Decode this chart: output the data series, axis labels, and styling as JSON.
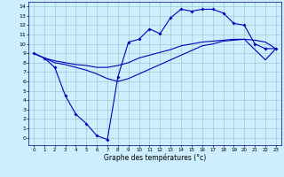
{
  "xlabel": "Graphe des températures (°c)",
  "xlim": [
    -0.5,
    23.5
  ],
  "ylim": [
    -0.8,
    14.5
  ],
  "xticks": [
    0,
    1,
    2,
    3,
    4,
    5,
    6,
    7,
    8,
    9,
    10,
    11,
    12,
    13,
    14,
    15,
    16,
    17,
    18,
    19,
    20,
    21,
    22,
    23
  ],
  "yticks": [
    0,
    1,
    2,
    3,
    4,
    5,
    6,
    7,
    8,
    9,
    10,
    11,
    12,
    13,
    14
  ],
  "bg_color": "#cceeff",
  "line_color": "#0000bb",
  "grid_color": "#99cccc",
  "line1_x": [
    0,
    1,
    2,
    3,
    4,
    5,
    6,
    7,
    8,
    9,
    10,
    11,
    12,
    13,
    14,
    15,
    16,
    17,
    18,
    19,
    20,
    21,
    22,
    23
  ],
  "line1_y": [
    9.0,
    8.5,
    7.5,
    4.5,
    2.5,
    1.5,
    0.2,
    -0.2,
    6.5,
    10.2,
    10.5,
    11.6,
    11.1,
    12.8,
    13.7,
    13.5,
    13.7,
    13.7,
    13.3,
    12.2,
    12.0,
    10.0,
    9.5,
    9.5
  ],
  "line2_x": [
    0,
    1,
    2,
    3,
    4,
    5,
    6,
    7,
    8,
    9,
    10,
    11,
    12,
    13,
    14,
    15,
    16,
    17,
    18,
    19,
    20,
    21,
    22,
    23
  ],
  "line2_y": [
    9.0,
    8.5,
    8.2,
    8.0,
    7.8,
    7.7,
    7.5,
    7.5,
    7.7,
    8.0,
    8.5,
    8.8,
    9.1,
    9.4,
    9.8,
    10.0,
    10.2,
    10.3,
    10.4,
    10.5,
    10.5,
    10.4,
    10.2,
    9.5
  ],
  "line3_x": [
    0,
    1,
    2,
    3,
    4,
    5,
    6,
    7,
    8,
    9,
    10,
    11,
    12,
    13,
    14,
    15,
    16,
    17,
    18,
    19,
    20,
    21,
    22,
    23
  ],
  "line3_y": [
    9.0,
    8.5,
    8.0,
    7.8,
    7.5,
    7.2,
    6.8,
    6.3,
    6.0,
    6.3,
    6.8,
    7.3,
    7.8,
    8.3,
    8.8,
    9.3,
    9.8,
    10.0,
    10.3,
    10.4,
    10.5,
    9.4,
    8.3,
    9.5
  ]
}
